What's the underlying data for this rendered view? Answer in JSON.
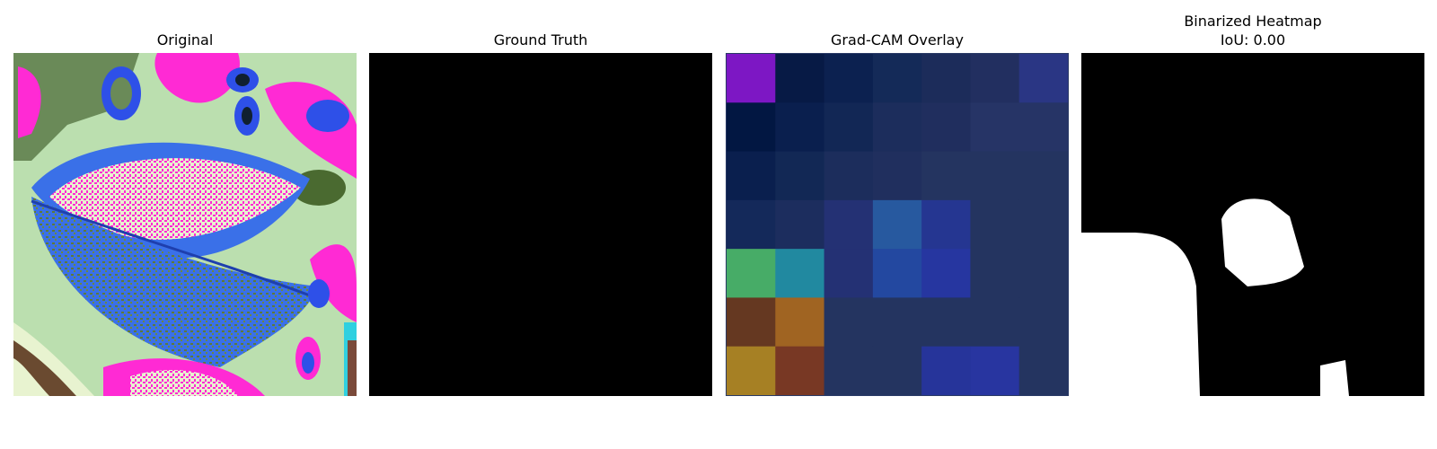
{
  "panels": [
    {
      "id": "original",
      "title": "Original"
    },
    {
      "id": "ground_truth",
      "title": "Ground Truth"
    },
    {
      "id": "gradcam",
      "title": "Grad-CAM Overlay"
    },
    {
      "id": "binarized",
      "title": "Binarized Heatmap",
      "subtitle": "IoU: 0.00"
    }
  ],
  "gradcam_grid": {
    "rows": 7,
    "cols": 7,
    "colors": [
      [
        "#7d17c4",
        "#071a45",
        "#0c2150",
        "#142a58",
        "#1c2c5a",
        "#222f60",
        "#2a3684"
      ],
      [
        "#021742",
        "#0a1f4e",
        "#122755",
        "#1c2d5c",
        "#202e5e",
        "#263466",
        "#263466"
      ],
      [
        "#0a1f4e",
        "#122855",
        "#1c2d5c",
        "#202f5e",
        "#243460",
        "#243460",
        "#243460"
      ],
      [
        "#14295a",
        "#1c2d5e",
        "#243174",
        "#27599f",
        "#253691",
        "#243460",
        "#243460"
      ],
      [
        "#47ac67",
        "#2189a0",
        "#243174",
        "#2348a0",
        "#2636a0",
        "#243460",
        "#243460"
      ],
      [
        "#653821",
        "#a06422",
        "#243460",
        "#243460",
        "#243460",
        "#243460",
        "#243460"
      ],
      [
        "#a68024",
        "#783824",
        "#243460",
        "#243460",
        "#26349a",
        "#2835a0",
        "#243460"
      ]
    ]
  }
}
